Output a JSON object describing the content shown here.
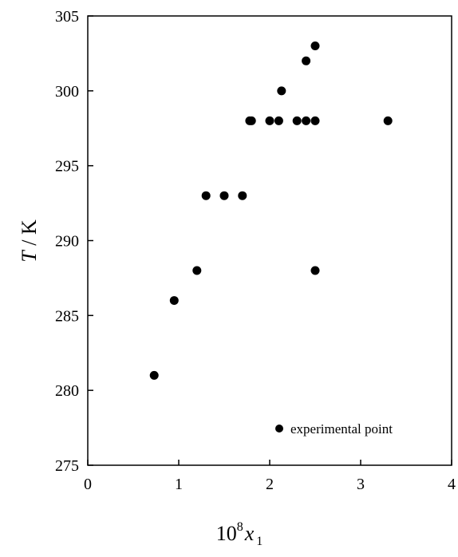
{
  "chart_data": {
    "type": "scatter",
    "xlabel": {
      "base": "10",
      "exponent": "8",
      "variable": "x",
      "subscript": "1"
    },
    "ylabel": {
      "variable": "T",
      "unit": " / K"
    },
    "xlim": [
      0,
      4
    ],
    "ylim": [
      275,
      305
    ],
    "x_ticks": [
      "0",
      "1",
      "2",
      "3",
      "4"
    ],
    "y_ticks": [
      "275",
      "280",
      "285",
      "290",
      "295",
      "300",
      "305"
    ],
    "grid": false,
    "legend": {
      "placement": "bottom-right",
      "label": "experimental point"
    },
    "series": [
      {
        "name": "experimental point",
        "color": "#000000",
        "points": [
          {
            "x": 0.73,
            "y": 281
          },
          {
            "x": 0.95,
            "y": 286
          },
          {
            "x": 1.2,
            "y": 288
          },
          {
            "x": 1.3,
            "y": 293
          },
          {
            "x": 1.5,
            "y": 293
          },
          {
            "x": 1.7,
            "y": 293
          },
          {
            "x": 1.78,
            "y": 298
          },
          {
            "x": 1.8,
            "y": 298
          },
          {
            "x": 2.0,
            "y": 298
          },
          {
            "x": 2.1,
            "y": 298
          },
          {
            "x": 2.13,
            "y": 300
          },
          {
            "x": 2.3,
            "y": 298
          },
          {
            "x": 2.4,
            "y": 298
          },
          {
            "x": 2.4,
            "y": 302
          },
          {
            "x": 2.5,
            "y": 298
          },
          {
            "x": 2.5,
            "y": 303
          },
          {
            "x": 2.5,
            "y": 288
          },
          {
            "x": 3.3,
            "y": 298
          }
        ]
      }
    ]
  }
}
